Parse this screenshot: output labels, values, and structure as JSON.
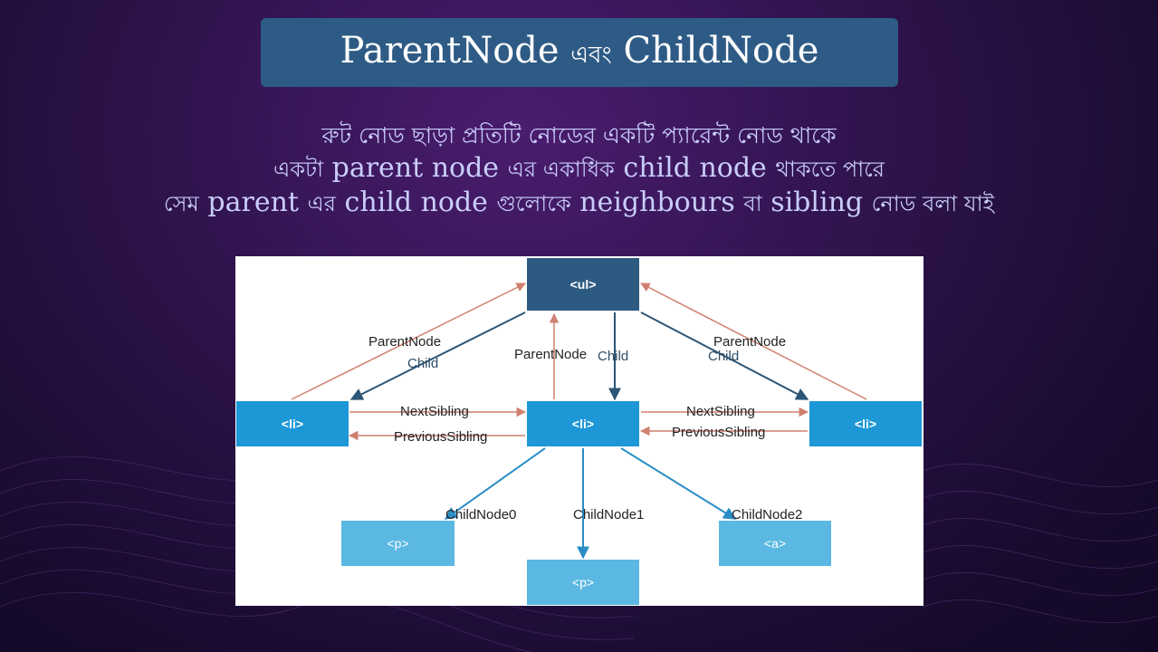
{
  "title": {
    "text_latin_1": "ParentNode",
    "text_bengali": "এবং",
    "text_latin_2": "ChildNode"
  },
  "subtitle": {
    "line1": "রুট নোড ছাড়া প্রতিটি নোডের একটি প্যারেন্ট নোড থাকে",
    "line2_part1": "একটা",
    "line2_part2": "parent node",
    "line2_part3": "এর একাধিক",
    "line2_part4": "child node",
    "line2_part5": "থাকতে পারে",
    "line3_part1": "সেম",
    "line3_part2": "parent",
    "line3_part3": "এর",
    "line3_part4": "child node",
    "line3_part5": "গুলোকে",
    "line3_part6": "neighbours",
    "line3_part7": "বা",
    "line3_part8": "sibling",
    "line3_part9": "নোড বলা যাই"
  },
  "diagram": {
    "nodes": {
      "ul": "<ul>",
      "li_left": "<li>",
      "li_center": "<li>",
      "li_right": "<li>",
      "p_left": "<p>",
      "p_center": "<p>",
      "a_right": "<a>"
    },
    "labels": {
      "parent_left": "ParentNode",
      "child_left": "Child",
      "parent_center": "ParentNode",
      "child_center": "Child",
      "parent_right": "ParentNode",
      "child_right": "Child",
      "next_left": "NextSibling",
      "prev_left": "PreviousSibling",
      "next_right": "NextSibling",
      "prev_right": "PreviousSibling",
      "childnode0": "ChildNode0",
      "childnode1": "ChildNode1",
      "childnode2": "ChildNode2"
    },
    "colors": {
      "parent_arrow": "#d08070",
      "child_arrow": "#2d5575",
      "leaf_arrow": "#2a8ec4"
    }
  }
}
